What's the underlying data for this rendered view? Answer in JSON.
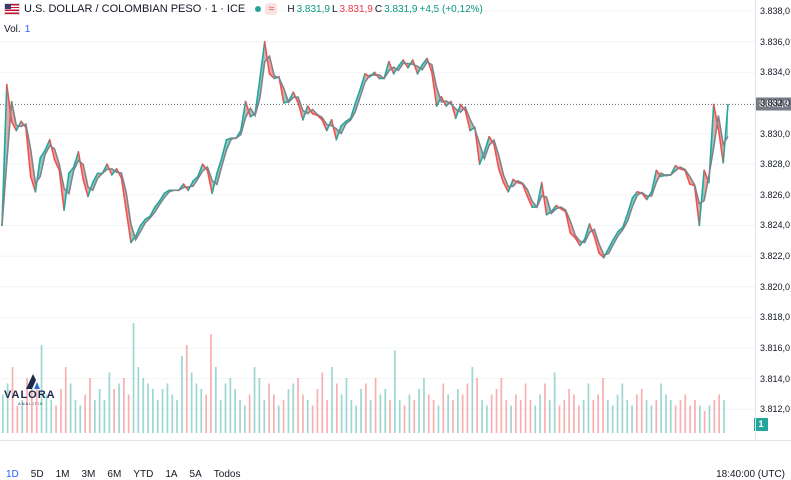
{
  "header": {
    "symbol": "U.S. DOLLAR / COLOMBIAN PESO · 1 · ICE",
    "wave_icon": "≈",
    "ohlc": {
      "h_label": "H",
      "h": "3.831,9",
      "l_label": "L",
      "l": "3.831,9",
      "c_label": "C",
      "c": "3.831,9",
      "change": "+4,5 (+0,12%)"
    }
  },
  "volume": {
    "label": "Vol.",
    "value": "1"
  },
  "price_tag": "3.831,9",
  "vol_tag": "1",
  "logo": {
    "name": "VALORA",
    "sub": "ANALITIK"
  },
  "bottom": {
    "ranges": [
      "1D",
      "5D",
      "1M",
      "3M",
      "6M",
      "YTD",
      "1A",
      "5A",
      "Todos"
    ],
    "time": "18:40:00 (UTC)"
  },
  "colors": {
    "up": "#26a69a",
    "down": "#ef5350",
    "line": "#808389",
    "axis": "#e0e3eb"
  },
  "chart_data": {
    "type": "area",
    "title": "U.S. DOLLAR / COLOMBIAN PESO · 1 · ICE",
    "y_ticks": [
      "3.838,0",
      "3.836,0",
      "3.834,0",
      "3.832,0",
      "3.830,0",
      "3.828,0",
      "3.826,0",
      "3.824,0",
      "3.822,0",
      "3.820,0",
      "3.818,0",
      "3.816,0",
      "3.814,0",
      "3.812,0"
    ],
    "y_tick_values": [
      3838,
      3836,
      3834,
      3832,
      3830,
      3828,
      3826,
      3824,
      3822,
      3820,
      3818,
      3816,
      3814,
      3812
    ],
    "ylim": [
      3811.3,
      3838.2
    ],
    "last_price": 3831.9,
    "series": [
      {
        "role": "price",
        "values": [
          3824.0,
          3833.2,
          3830.8,
          3830.2,
          3830.8,
          3830.4,
          3827.2,
          3826.2,
          3828.4,
          3828.9,
          3829.6,
          3828.3,
          3827.6,
          3825.0,
          3827.4,
          3827.8,
          3828.8,
          3827.0,
          3825.9,
          3826.8,
          3827.4,
          3827.4,
          3828.0,
          3827.3,
          3827.7,
          3827.1,
          3825.0,
          3822.9,
          3823.3,
          3824.0,
          3824.4,
          3824.6,
          3825.2,
          3825.6,
          3826.1,
          3826.3,
          3826.3,
          3826.3,
          3826.7,
          3826.3,
          3826.9,
          3827.2,
          3828.0,
          3827.6,
          3826.1,
          3827.4,
          3828.4,
          3829.6,
          3829.7,
          3829.7,
          3830.2,
          3832.1,
          3831.1,
          3831.3,
          3833.6,
          3836.0,
          3833.9,
          3833.6,
          3833.7,
          3832.0,
          3832.1,
          3832.7,
          3832.0,
          3830.9,
          3831.8,
          3831.3,
          3831.2,
          3830.9,
          3830.2,
          3830.9,
          3829.6,
          3830.5,
          3830.8,
          3831.0,
          3832.0,
          3832.9,
          3833.9,
          3833.7,
          3834.0,
          3833.6,
          3833.6,
          3834.7,
          3833.9,
          3834.4,
          3834.8,
          3834.3,
          3834.8,
          3833.9,
          3834.5,
          3834.9,
          3834.0,
          3831.8,
          3832.4,
          3831.8,
          3832.1,
          3831.0,
          3831.9,
          3831.5,
          3830.2,
          3830.4,
          3828.0,
          3828.8,
          3829.8,
          3829.3,
          3827.7,
          3826.8,
          3826.2,
          3827.0,
          3826.8,
          3826.7,
          3825.9,
          3825.2,
          3825.2,
          3826.8,
          3824.7,
          3824.9,
          3825.3,
          3825.1,
          3824.9,
          3823.5,
          3823.2,
          3822.7,
          3823.1,
          3824.1,
          3823.3,
          3822.2,
          3821.9,
          3822.5,
          3823.1,
          3823.6,
          3823.9,
          3824.8,
          3825.8,
          3826.2,
          3826.1,
          3825.7,
          3826.2,
          3827.6,
          3827.2,
          3827.3,
          3827.3,
          3827.9,
          3827.7,
          3827.6,
          3826.7,
          3826.6,
          3824.0,
          3827.6,
          3826.8,
          3831.9,
          3830.3,
          3828.1,
          3831.9
        ]
      },
      {
        "role": "volume",
        "values": [
          0.35,
          0.45,
          0.6,
          0.25,
          0.3,
          0.5,
          0.4,
          0.45,
          0.8,
          0.35,
          0.3,
          0.25,
          0.4,
          0.6,
          0.45,
          0.3,
          0.25,
          0.35,
          0.5,
          0.3,
          0.4,
          0.3,
          0.55,
          0.4,
          0.45,
          0.5,
          0.35,
          1.0,
          0.6,
          0.5,
          0.45,
          0.4,
          0.3,
          0.4,
          0.45,
          0.35,
          0.3,
          0.7,
          0.8,
          0.55,
          0.45,
          0.4,
          0.35,
          0.9,
          0.6,
          0.3,
          0.45,
          0.5,
          0.4,
          0.3,
          0.25,
          0.35,
          0.6,
          0.5,
          0.3,
          0.45,
          0.35,
          0.25,
          0.3,
          0.4,
          0.45,
          0.5,
          0.35,
          0.3,
          0.25,
          0.4,
          0.55,
          0.3,
          0.6,
          0.45,
          0.35,
          0.5,
          0.3,
          0.25,
          0.4,
          0.45,
          0.3,
          0.5,
          0.35,
          0.4,
          0.3,
          0.75,
          0.3,
          0.25,
          0.35,
          0.3,
          0.4,
          0.5,
          0.35,
          0.3,
          0.25,
          0.45,
          0.35,
          0.3,
          0.4,
          0.35,
          0.45,
          0.6,
          0.5,
          0.3,
          0.25,
          0.35,
          0.4,
          0.5,
          0.3,
          0.25,
          0.35,
          0.3,
          0.45,
          0.3,
          0.25,
          0.35,
          0.45,
          0.3,
          0.55,
          0.25,
          0.3,
          0.4,
          0.35,
          0.25,
          0.3,
          0.45,
          0.3,
          0.35,
          0.5,
          0.3,
          0.25,
          0.35,
          0.45,
          0.3,
          0.25,
          0.35,
          0.4,
          0.3,
          0.25,
          0.3,
          0.45,
          0.35,
          0.3,
          0.25,
          0.3,
          0.35,
          0.25,
          0.3,
          0.25,
          0.2,
          0.25,
          0.3,
          0.35,
          0.3
        ]
      }
    ]
  }
}
